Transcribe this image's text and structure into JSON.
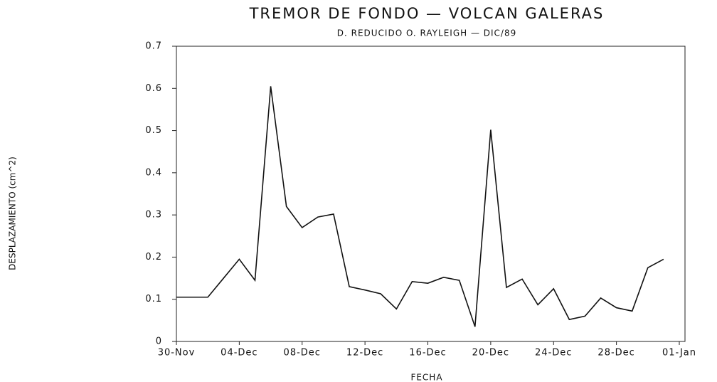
{
  "chart_data": {
    "type": "line",
    "title": "TREMOR DE FONDO — VOLCAN GALERAS",
    "subtitle": "D. REDUCIDO O. RAYLEIGH — DIC/89",
    "x_label": "FECHA",
    "y_label": "DESPLAZAMIENTO (cm^2)",
    "x": [
      0,
      1,
      2,
      3,
      4,
      5,
      6,
      7,
      8,
      9,
      10,
      11,
      12,
      13,
      14,
      15,
      16,
      17,
      18,
      19,
      20,
      21,
      22,
      23,
      24,
      25,
      26,
      27,
      28,
      29,
      30,
      31
    ],
    "series": [
      {
        "name": "Desplazamiento",
        "color": "#111111",
        "values": [
          0.105,
          0.105,
          0.105,
          0.15,
          0.195,
          0.145,
          0.605,
          0.32,
          0.27,
          0.295,
          0.302,
          0.13,
          0.122,
          0.113,
          0.077,
          0.142,
          0.138,
          0.152,
          0.145,
          0.035,
          0.502,
          0.128,
          0.148,
          0.087,
          0.125,
          0.052,
          0.06,
          0.103,
          0.08,
          0.072,
          0.175,
          0.195
        ]
      }
    ],
    "xlim": [
      0,
      32
    ],
    "xticks": [
      {
        "value": 0,
        "label": "30-Nov"
      },
      {
        "value": 4,
        "label": "04-Dec"
      },
      {
        "value": 8,
        "label": "08-Dec"
      },
      {
        "value": 12,
        "label": "12-Dec"
      },
      {
        "value": 16,
        "label": "16-Dec"
      },
      {
        "value": 20,
        "label": "20-Dec"
      },
      {
        "value": 24,
        "label": "24-Dec"
      },
      {
        "value": 28,
        "label": "28-Dec"
      },
      {
        "value": 32,
        "label": "01-Jan"
      }
    ],
    "ylim": [
      0,
      0.7
    ],
    "yticks": [
      0,
      0.1,
      0.2,
      0.3,
      0.4,
      0.5,
      0.6,
      0.7
    ],
    "grid": false
  }
}
